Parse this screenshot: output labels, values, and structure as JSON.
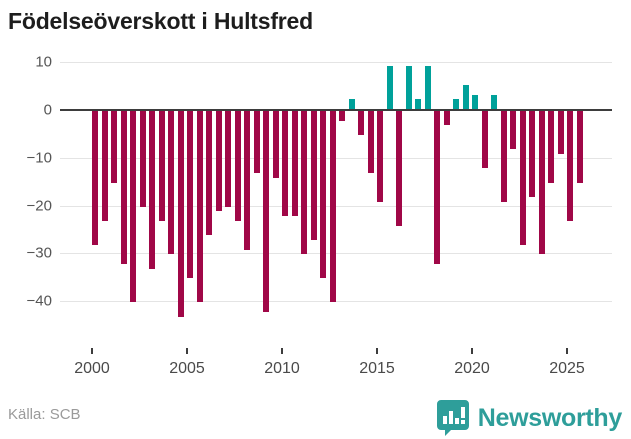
{
  "chart_data": {
    "type": "bar",
    "title": "Födelseöverskott i Hultsfred",
    "ylabel": "",
    "xlabel": "",
    "ylim": [
      -45,
      12
    ],
    "grid": "horizontal",
    "legend": "none",
    "y_ticks": [
      {
        "value": 10,
        "label": "10"
      },
      {
        "value": 0,
        "label": "0"
      },
      {
        "value": -10,
        "label": "−10"
      },
      {
        "value": -20,
        "label": "−20"
      },
      {
        "value": -30,
        "label": "−30"
      },
      {
        "value": -40,
        "label": "−40"
      }
    ],
    "x_ticks": [
      {
        "year": 2000,
        "label": "2000"
      },
      {
        "year": 2005,
        "label": "2005"
      },
      {
        "year": 2010,
        "label": "2010"
      },
      {
        "year": 2015,
        "label": "2015"
      },
      {
        "year": 2020,
        "label": "2020"
      },
      {
        "year": 2025,
        "label": "2025"
      }
    ],
    "categories": [
      "2000H1",
      "2000H2",
      "2001H1",
      "2001H2",
      "2002H1",
      "2002H2",
      "2003H1",
      "2003H2",
      "2004H1",
      "2004H2",
      "2005H1",
      "2005H2",
      "2006H1",
      "2006H2",
      "2007H1",
      "2007H2",
      "2008H1",
      "2008H2",
      "2009H1",
      "2009H2",
      "2010H1",
      "2010H2",
      "2011H1",
      "2011H2",
      "2012H1",
      "2012H2",
      "2013H1",
      "2013H2",
      "2014H1",
      "2014H2",
      "2015H1",
      "2015H2",
      "2016H1",
      "2016H2",
      "2017H1",
      "2017H2",
      "2018H1",
      "2018H2",
      "2019H1",
      "2019H2",
      "2020H1",
      "2020H2",
      "2021H1",
      "2021H2",
      "2022H1",
      "2022H2",
      "2023H1",
      "2023H2",
      "2024H1",
      "2024H2",
      "2025H1",
      "2025H2"
    ],
    "values": [
      -28,
      -23,
      -15,
      -32,
      -40,
      -20,
      -33,
      -23,
      -30,
      -43,
      -35,
      -40,
      -26,
      -21,
      -20,
      -23,
      -29,
      -13,
      -42,
      -14,
      -22,
      -22,
      -30,
      -27,
      -35,
      -40,
      -2,
      2,
      -5,
      -13,
      -19,
      9,
      -24,
      9,
      2,
      9,
      -32,
      -3,
      2,
      5,
      3,
      -12,
      3,
      -19,
      -8,
      -28,
      -18,
      -30,
      -15,
      -9,
      -23,
      -15
    ],
    "colors": {
      "negative": "#a00747",
      "positive": "#00a19a",
      "zero_axis": "#3d3d3d",
      "gridline": "#e4e4e4"
    }
  },
  "footer": {
    "source_label": "Källa: SCB",
    "brand_name": "Newsworthy",
    "brand_color": "#2e9e9a"
  }
}
